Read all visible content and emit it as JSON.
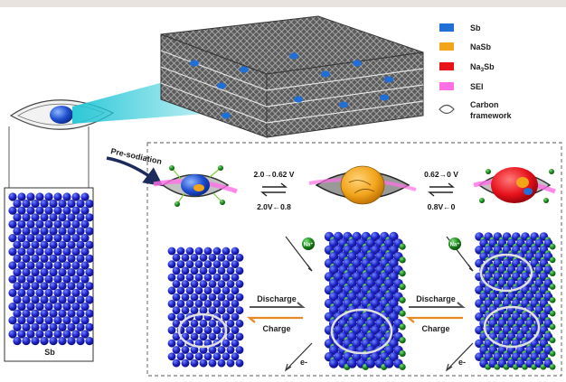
{
  "legend": {
    "items": [
      {
        "label": "Sb",
        "color": "#1f6fd6"
      },
      {
        "label": "NaSb",
        "color": "#f2a51b"
      },
      {
        "label": "Na3Sb",
        "color": "#e8121b"
      },
      {
        "label": "SEI",
        "color": "#ff6fe6"
      }
    ],
    "carbon_label_line1": "Carbon",
    "carbon_label_line2": "framework"
  },
  "labels": {
    "presodiation": "Pre-sodiation",
    "sb_label": "Sb",
    "v1_forward": "2.0→0.62 V",
    "v1_reverse": "2.0V←0.8",
    "v2_forward": "0.62→0 V",
    "v2_reverse": "0.8V←0",
    "discharge_1": "Discharge",
    "charge_1": "Charge",
    "discharge_2": "Discharge",
    "charge_2": "Charge",
    "electron_1": "e-",
    "electron_2": "e-",
    "na_ion_1": "Na⁺",
    "na_ion_2": "Na⁺"
  },
  "colors": {
    "sb_atom": "#1f22c8",
    "na_atom": "#1c8a1c",
    "charge_arrow": "#e88a20",
    "discharge_arrow": "#555555",
    "beam": "#22c6d6"
  }
}
